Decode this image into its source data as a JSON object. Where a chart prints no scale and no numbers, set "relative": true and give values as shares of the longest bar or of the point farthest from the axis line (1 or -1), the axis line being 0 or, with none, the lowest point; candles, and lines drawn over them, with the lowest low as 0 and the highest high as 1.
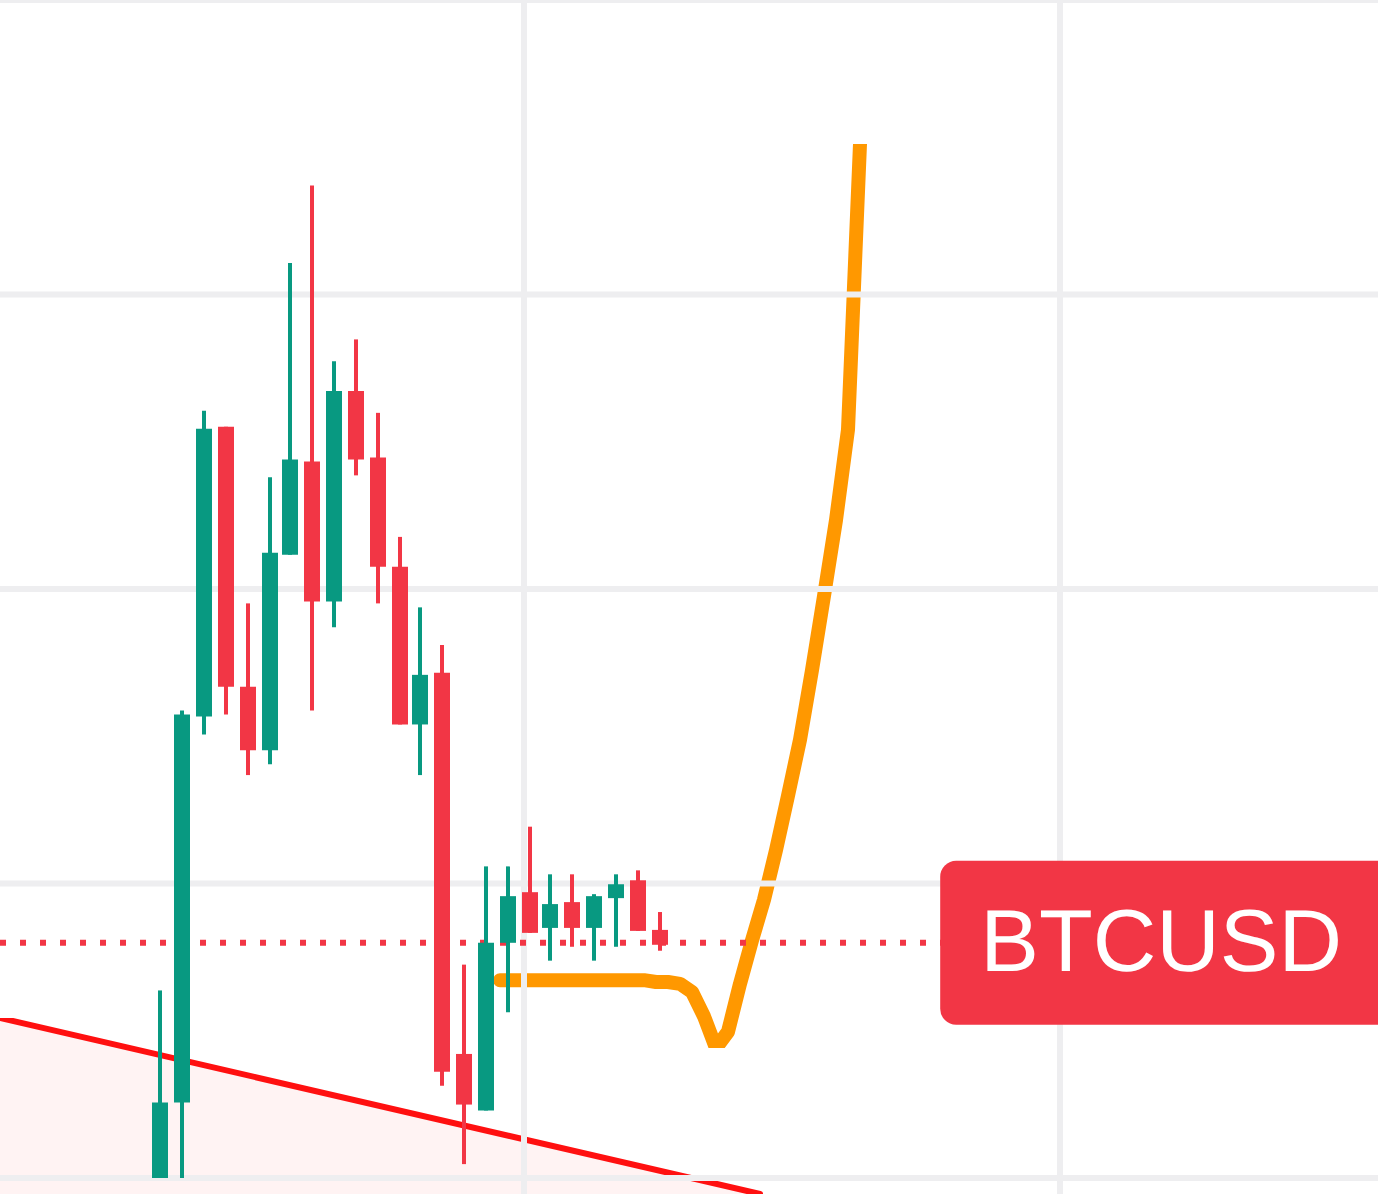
{
  "chart_data": [
    {
      "type": "candlestick",
      "relative": true,
      "categories": [
        null,
        null,
        null,
        null,
        null,
        null,
        null,
        null,
        null,
        null,
        null,
        null,
        null,
        null,
        null,
        null,
        null,
        null,
        null,
        null,
        null,
        null,
        null,
        null
      ],
      "ohlc": [
        [
          0,
          0.189,
          0,
          0.076
        ],
        [
          0.076,
          0.471,
          0,
          0.467
        ],
        [
          0.465,
          0.773,
          0.447,
          0.755
        ],
        [
          0.757,
          0.757,
          0.467,
          0.495
        ],
        [
          0.495,
          0.579,
          0.406,
          0.431
        ],
        [
          0.431,
          0.706,
          0.417,
          0.63
        ],
        [
          0.628,
          0.922,
          0.628,
          0.724
        ],
        [
          0.722,
          1,
          0.471,
          0.581
        ],
        [
          0.581,
          0.823,
          0.555,
          0.793
        ],
        [
          0.793,
          0.845,
          0.708,
          0.724
        ],
        [
          0.726,
          0.771,
          0.579,
          0.616
        ],
        [
          0.616,
          0.646,
          0.457,
          0.457
        ],
        [
          0.457,
          0.575,
          0.406,
          0.507
        ],
        [
          0.509,
          0.537,
          0.093,
          0.107
        ],
        [
          0.125,
          0.215,
          0.014,
          0.074
        ],
        [
          0.068,
          0.314,
          0.068,
          0.237
        ],
        [
          0.237,
          0.314,
          0.167,
          0.284
        ],
        [
          0.288,
          0.354,
          0.247,
          0.247
        ],
        [
          0.252,
          0.306,
          0.219,
          0.276
        ],
        [
          0.278,
          0.306,
          0.233,
          0.252
        ],
        [
          0.252,
          0.286,
          0.219,
          0.284
        ],
        [
          0.282,
          0.306,
          0.233,
          0.296
        ],
        [
          0.3,
          0.31,
          0.249,
          0.249
        ],
        [
          0.25,
          0.268,
          0.229,
          0.235
        ]
      ],
      "ref_lines": [
        {
          "axis": "y",
          "value": 0.237,
          "label": "BTCUSD",
          "color": "#f23645",
          "line_style": "dotted"
        }
      ],
      "grid": true
    },
    {
      "type": "area",
      "relative": true,
      "categories": [
        null,
        null
      ],
      "series": [
        {
          "color": "#ff1010",
          "values": [
            1,
            0
          ]
        }
      ]
    },
    {
      "type": "line",
      "relative": true,
      "categories": [
        null,
        null,
        null,
        null,
        null,
        null,
        null,
        null,
        null,
        null,
        null,
        null,
        null,
        null,
        null,
        null,
        null,
        null,
        null,
        null,
        null,
        null,
        null,
        null,
        null,
        null,
        null,
        null,
        null,
        null,
        null
      ],
      "series": [
        {
          "color": "#ff9800",
          "values": [
            0.075,
            0.075,
            0.075,
            0.075,
            0.075,
            0.075,
            0.075,
            0.075,
            0.075,
            0.075,
            0.075,
            0.075,
            0.075,
            0.073,
            0.073,
            0.071,
            0.062,
            0.035,
            0,
            0.018,
            0.071,
            0.119,
            0.164,
            0.219,
            0.279,
            0.341,
            0.418,
            0.5,
            0.584,
            0.684,
            1
          ]
        }
      ]
    }
  ]
}
